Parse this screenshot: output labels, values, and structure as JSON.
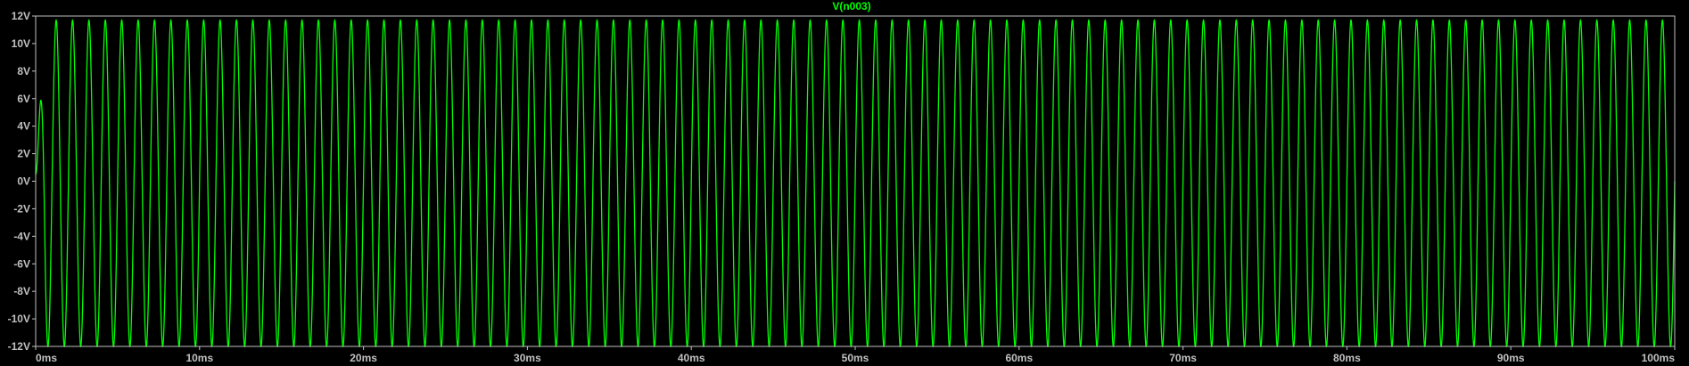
{
  "chart_data": {
    "type": "line",
    "title": "",
    "xlabel": "",
    "ylabel": "",
    "x_unit": "ms",
    "y_unit": "V",
    "xlim": [
      0,
      100
    ],
    "ylim": [
      -12,
      12
    ],
    "x_ticks": [
      "0ms",
      "10ms",
      "20ms",
      "30ms",
      "40ms",
      "50ms",
      "60ms",
      "70ms",
      "80ms",
      "90ms",
      "100ms"
    ],
    "y_ticks": [
      "12V",
      "10V",
      "8V",
      "6V",
      "4V",
      "2V",
      "0V",
      "-2V",
      "-4V",
      "-6V",
      "-8V",
      "-10V",
      "-12V"
    ],
    "grid": false,
    "series": [
      {
        "name": "V(n003)",
        "color": "#00ff00",
        "waveform": "sine",
        "frequency_hz": 1000,
        "amplitude_v": 12,
        "peak_high_v": 11.7,
        "peak_low_v": -12,
        "offset_v": 0,
        "x_start_ms": 0,
        "x_end_ms": 100,
        "initial_v": 0.5
      }
    ]
  },
  "colors": {
    "background": "#000000",
    "axis": "#c0c0c0",
    "trace": "#00ff00"
  }
}
